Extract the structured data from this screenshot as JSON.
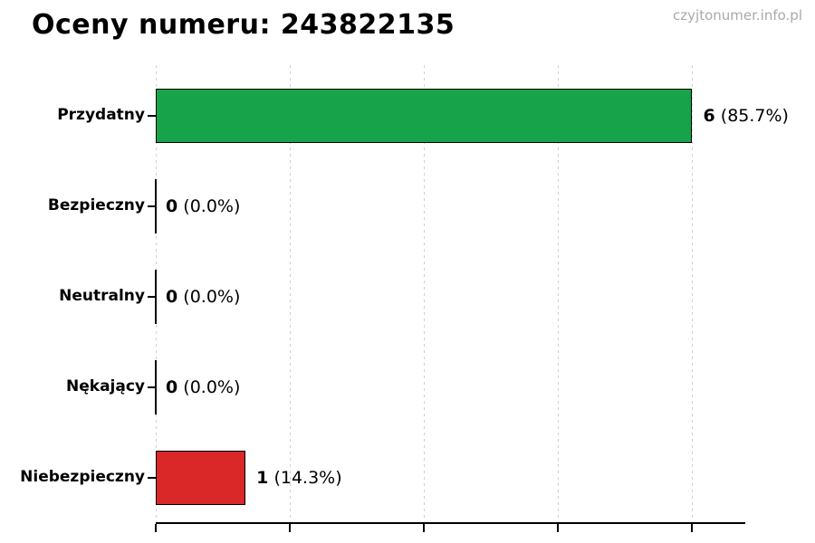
{
  "watermark": "czyjtonumer.info.pl",
  "chart_data": {
    "type": "bar",
    "orientation": "horizontal",
    "title": "Oceny numeru: 243822135",
    "categories": [
      "Przydatny",
      "Bezpieczny",
      "Neutralny",
      "Nękający",
      "Niebezpieczny"
    ],
    "values": [
      6,
      0,
      0,
      0,
      1
    ],
    "pct_labels": [
      "(85.7%)",
      "(0.0%)",
      "(0.0%)",
      "(0.0%)",
      "(14.3%)"
    ],
    "data_labels": [
      "6 (85.7%)",
      "0 (0.0%)",
      "0 (0.0%)",
      "0 (0.0%)",
      "1 (14.3%)"
    ],
    "bar_colors": [
      "#17a34a",
      null,
      null,
      null,
      "#da2727"
    ],
    "bar_edge_color": "#000000",
    "grid": "vertical-dashed",
    "gridline_color": "#cfcfcf",
    "x_ticks": [
      0,
      1.5,
      3.0,
      4.5,
      6.0
    ],
    "xlim": [
      0,
      6.6
    ],
    "legend": "none"
  }
}
